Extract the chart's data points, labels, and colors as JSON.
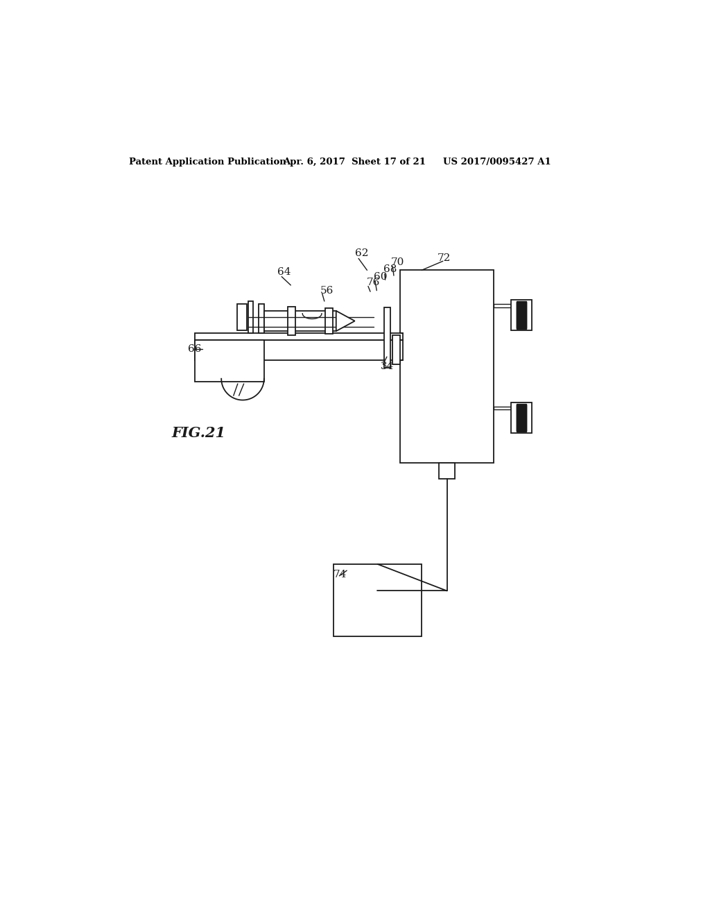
{
  "title_left": "Patent Application Publication",
  "title_mid": "Apr. 6, 2017  Sheet 17 of 21",
  "title_right": "US 2017/0095427 A1",
  "fig_label": "FIG.21",
  "bg_color": "#ffffff",
  "line_color": "#1a1a1a"
}
